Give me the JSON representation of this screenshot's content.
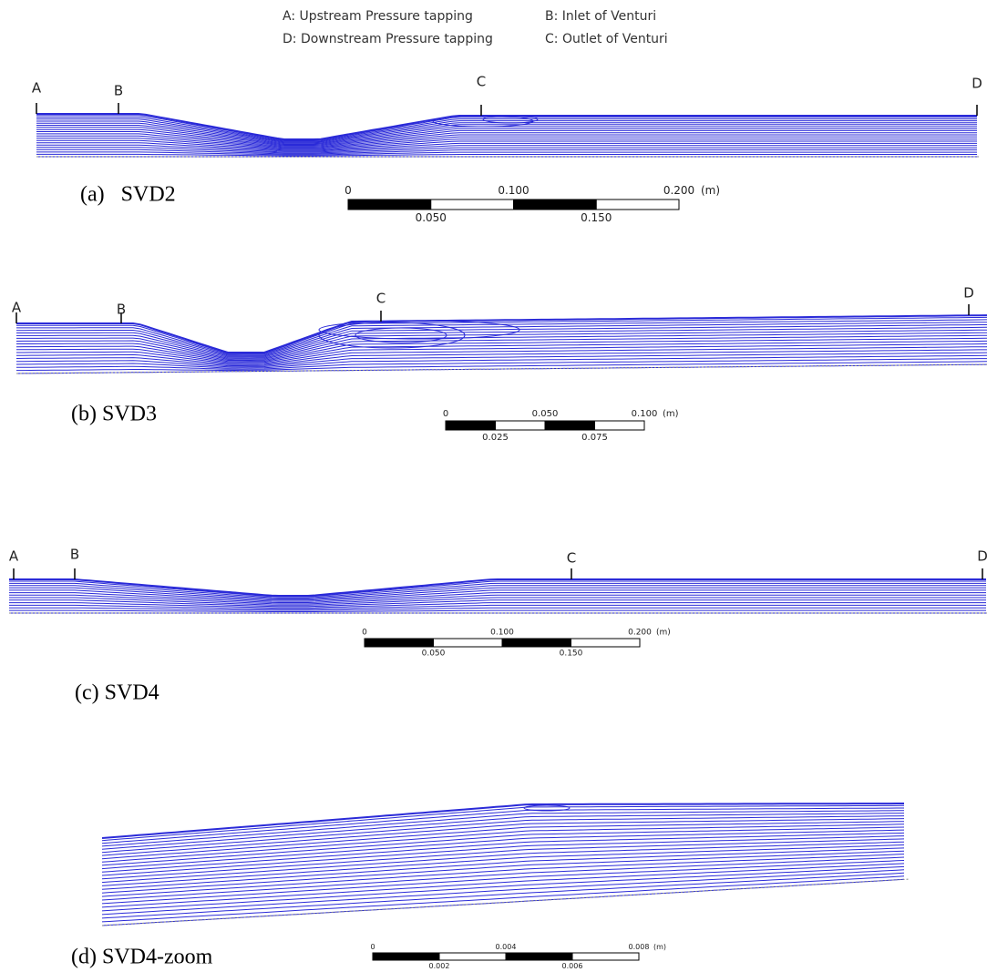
{
  "legend": {
    "items": [
      "A: Upstream Pressure tapping",
      "B: Inlet of Venturi",
      "D: Downstream Pressure tapping",
      "C: Outlet of Venturi"
    ]
  },
  "panels": [
    {
      "label": "(a)   SVD2",
      "points": [
        "A",
        "B",
        "C",
        "D"
      ],
      "scale": {
        "top": [
          "0",
          "0.100",
          "0.200"
        ],
        "bottom": [
          "0.050",
          "0.150"
        ],
        "unit": "(m)"
      }
    },
    {
      "label": "(b) SVD3",
      "points": [
        "A",
        "B",
        "C",
        "D"
      ],
      "scale": {
        "top": [
          "0",
          "0.050",
          "0.100"
        ],
        "bottom": [
          "0.025",
          "0.075"
        ],
        "unit": "(m)"
      }
    },
    {
      "label": "(c) SVD4",
      "points": [
        "A",
        "B",
        "C",
        "D"
      ],
      "scale": {
        "top": [
          "0",
          "0.100",
          "0.200"
        ],
        "bottom": [
          "0.050",
          "0.150"
        ],
        "unit": "(m)"
      }
    },
    {
      "label": "(d) SVD4-zoom",
      "points": [],
      "scale": {
        "top": [
          "0",
          "0.004",
          "0.008"
        ],
        "bottom": [
          "0.002",
          "0.006"
        ],
        "unit": "(m)"
      }
    }
  ]
}
